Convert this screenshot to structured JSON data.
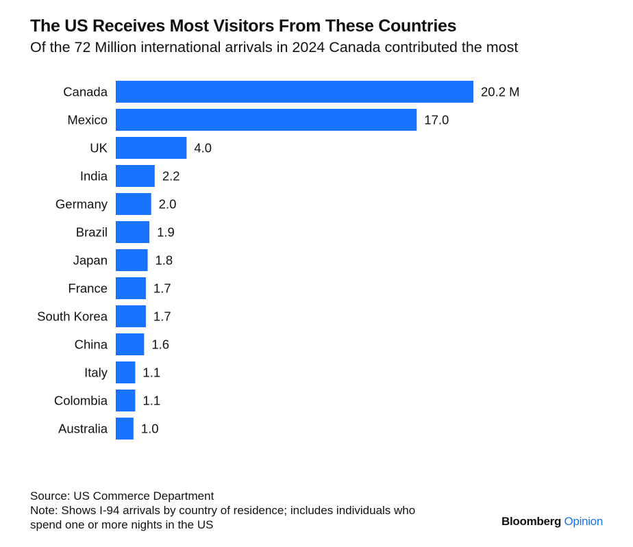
{
  "title": "The US Receives Most Visitors From These Countries",
  "subtitle": "Of the 72 Million international arrivals in 2024 Canada contributed the most",
  "colors": {
    "bar": "#1a73ff",
    "text": "#111111",
    "brand_accent": "#1a73e8"
  },
  "chart_data": {
    "type": "bar",
    "orientation": "horizontal",
    "categories": [
      "Canada",
      "Mexico",
      "UK",
      "India",
      "Germany",
      "Brazil",
      "Japan",
      "France",
      "South Korea",
      "China",
      "Italy",
      "Colombia",
      "Australia"
    ],
    "values": [
      20.2,
      17.0,
      4.0,
      2.2,
      2.0,
      1.9,
      1.8,
      1.7,
      1.7,
      1.6,
      1.1,
      1.1,
      1.0
    ],
    "value_labels": [
      "20.2 M",
      "17.0",
      "4.0",
      "2.2",
      "2.0",
      "1.9",
      "1.8",
      "1.7",
      "1.7",
      "1.6",
      "1.1",
      "1.1",
      "1.0"
    ],
    "xlim": [
      0,
      20.2
    ],
    "grid": false,
    "legend": "none"
  },
  "footer": {
    "source": "Source: US Commerce Department",
    "note_line1": "Note: Shows I-94 arrivals by country of residence; includes individuals who",
    "note_line2": "spend one or more nights in the US"
  },
  "brand": {
    "part1": "Bloomberg",
    "part2": "Opinion"
  }
}
